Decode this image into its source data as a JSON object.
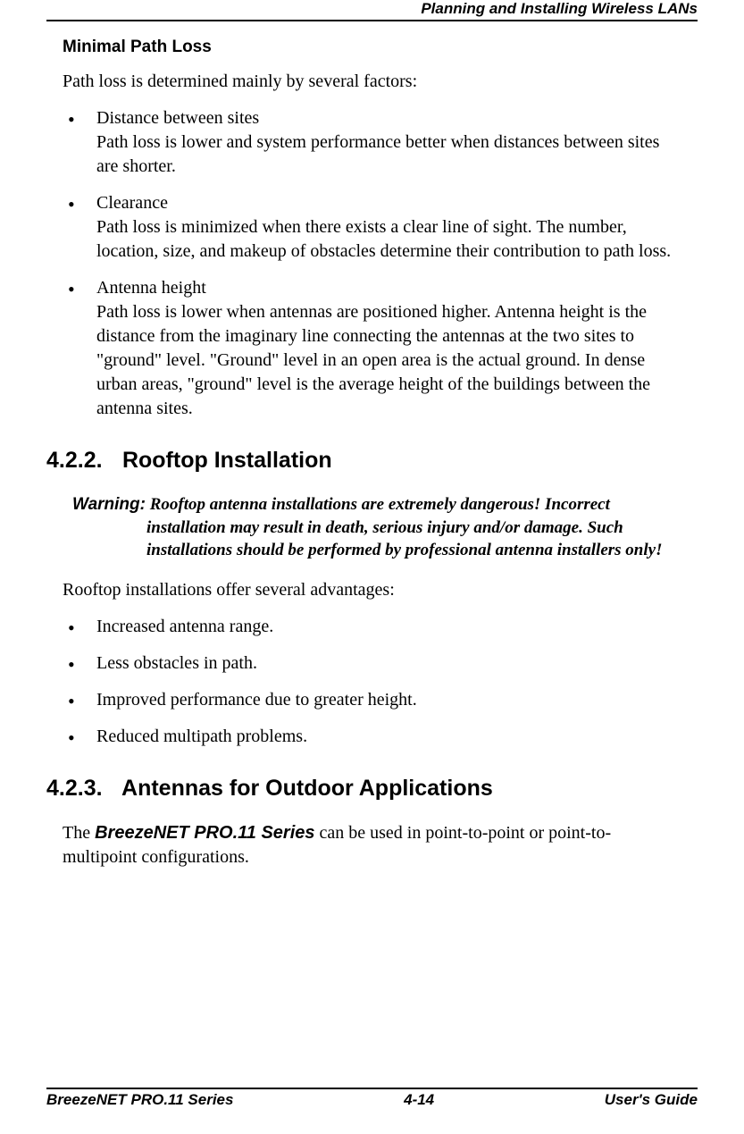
{
  "header": {
    "title": "Planning and Installing Wireless LANs"
  },
  "section1": {
    "heading": "Minimal Path Loss",
    "intro": "Path loss is determined mainly by several factors:",
    "bullets": [
      {
        "title": "Distance between sites",
        "body": "Path loss is lower and system performance better when distances between sites are shorter."
      },
      {
        "title": "Clearance",
        "body": "Path loss is minimized when there exists a clear line of sight. The number, location, size, and makeup of obstacles determine their contribution to path loss."
      },
      {
        "title": "Antenna height",
        "body": "Path loss is lower when antennas are positioned higher. Antenna height is the distance from the imaginary line connecting the antennas at the two sites to \"ground\" level. \"Ground\" level in an open area is the actual ground. In dense urban areas, \"ground\" level is the average height of the buildings between the antenna sites."
      }
    ]
  },
  "section2": {
    "number": "4.2.2.",
    "title": "Rooftop Installation",
    "warning_label": "Warning:",
    "warning_text": "Rooftop antenna installations are extremely dangerous! Incorrect installation may result in death, serious injury and/or damage. Such installations should be performed by professional antenna installers only!",
    "intro": "Rooftop installations offer several advantages:",
    "bullets": [
      "Increased antenna range.",
      "Less obstacles in path.",
      "Improved performance due to greater height.",
      "Reduced multipath problems."
    ]
  },
  "section3": {
    "number": "4.2.3.",
    "title": "Antennas for Outdoor Applications",
    "para_prefix": "The ",
    "para_bold": "BreezeNET PRO.11 Series",
    "para_suffix": " can be used in point-to-point or point-to-multipoint configurations."
  },
  "footer": {
    "left": "BreezeNET PRO.11 Series",
    "center": "4-14",
    "right": "User's Guide"
  }
}
